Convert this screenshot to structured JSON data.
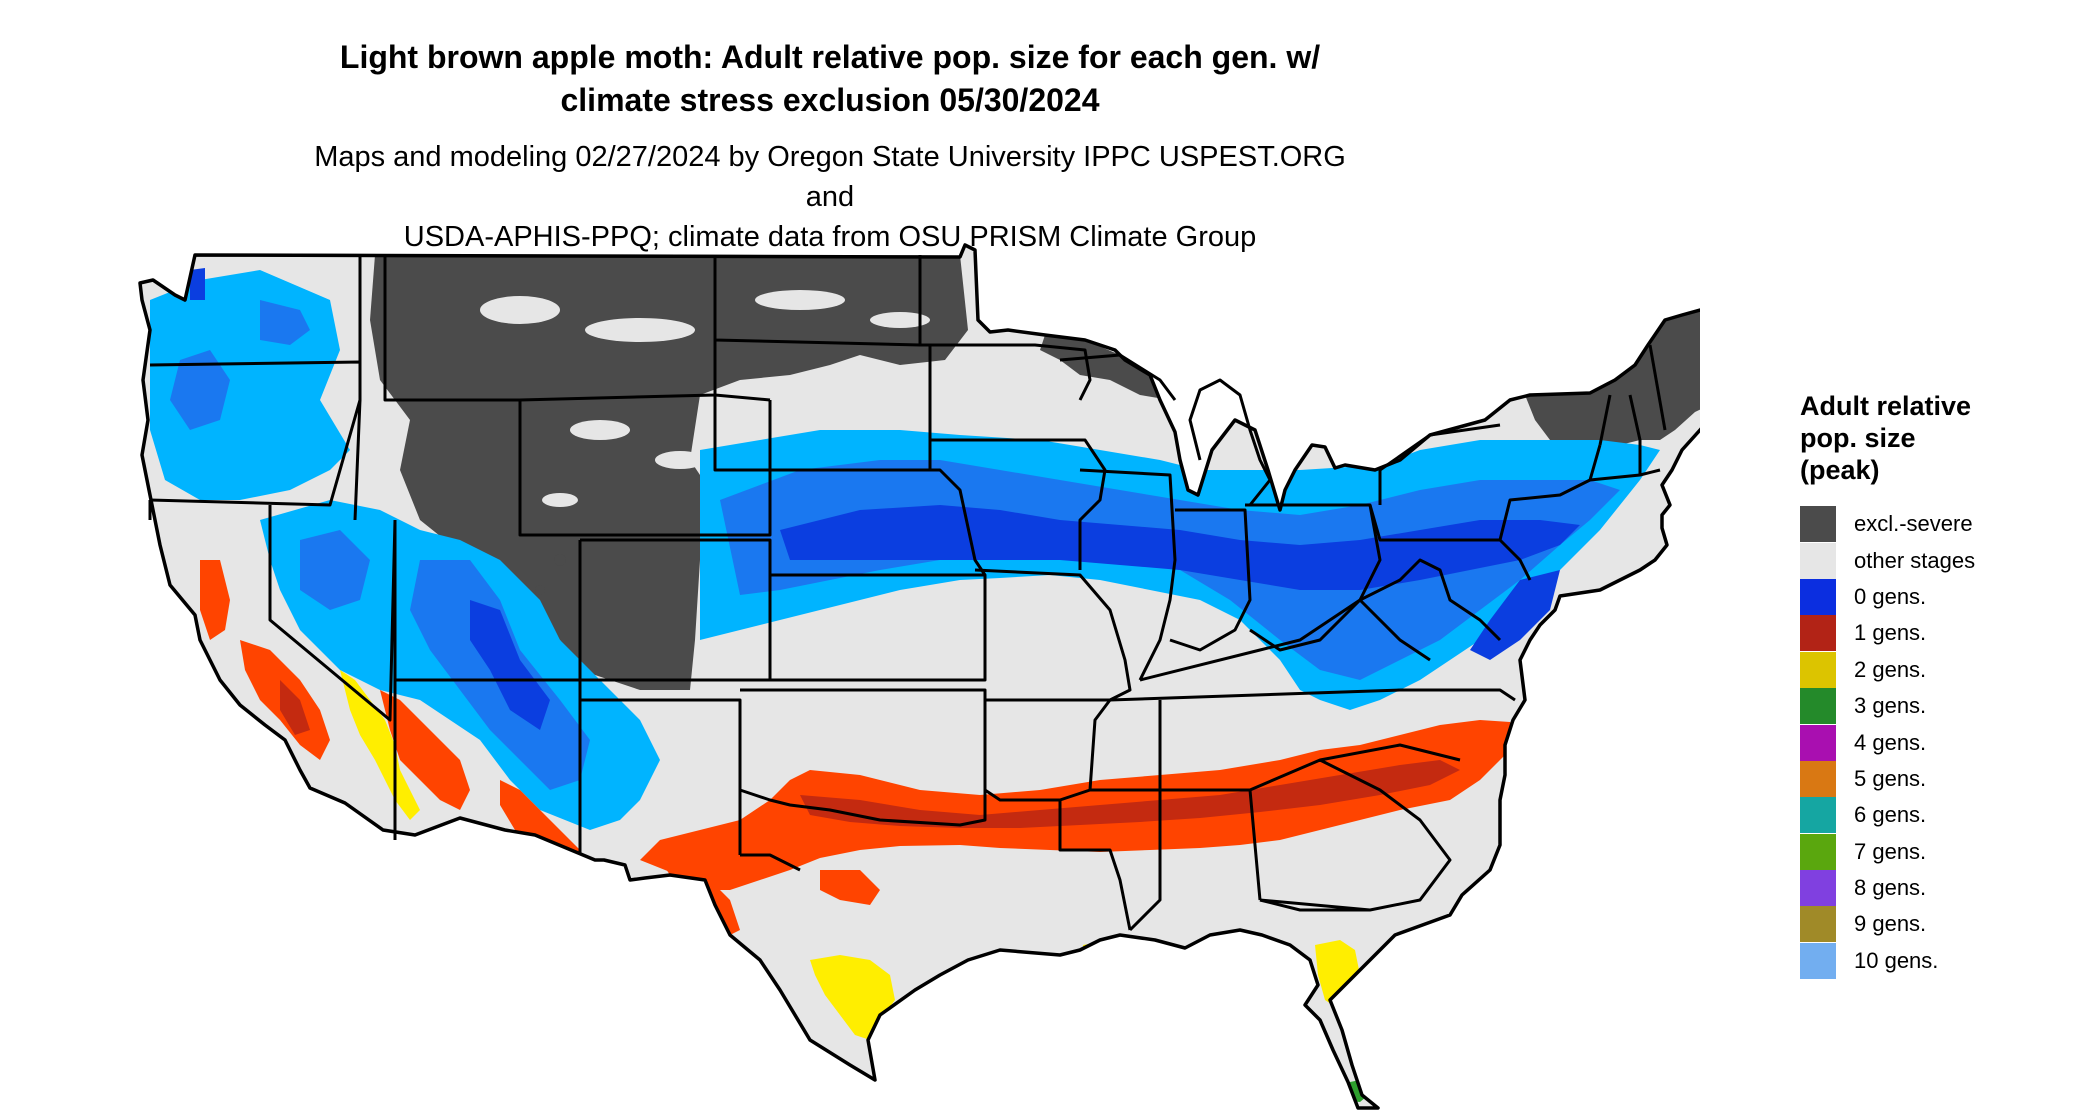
{
  "title_line1": "Light brown apple moth: Adult relative pop. size for each gen. w/",
  "title_line2": "climate stress exclusion 05/30/2024",
  "subtitle_line1": "Maps and modeling 02/27/2024 by Oregon State University IPPC USPEST.ORG and",
  "subtitle_line2": "USDA-APHIS-PPQ; climate data from OSU PRISM Climate Group",
  "legend": {
    "title_lines": [
      "Adult relative",
      "pop. size",
      "(peak)"
    ],
    "items": [
      {
        "label": "excl.-severe",
        "color": "#4b4b4b"
      },
      {
        "label": "other stages",
        "color": "#e6e6e6"
      },
      {
        "label": "0 gens.",
        "color": "#0b2ee0"
      },
      {
        "label": "1 gens.",
        "color": "#b22316"
      },
      {
        "label": "2 gens.",
        "color": "#dcc400"
      },
      {
        "label": "3 gens.",
        "color": "#248a2a"
      },
      {
        "label": "4 gens.",
        "color": "#a90fb0"
      },
      {
        "label": "5 gens.",
        "color": "#d97813"
      },
      {
        "label": "6 gens.",
        "color": "#15a6a2"
      },
      {
        "label": "7 gens.",
        "color": "#5aa70e"
      },
      {
        "label": "8 gens.",
        "color": "#8040e0"
      },
      {
        "label": "9 gens.",
        "color": "#a08a28"
      },
      {
        "label": "10 gens.",
        "color": "#72aef0"
      }
    ]
  },
  "map_colors": {
    "land": "#e6e6e6",
    "excluded": "#4b4b4b",
    "zero_gen_light": "#00b4ff",
    "zero_gen_mid": "#1a78f0",
    "zero_gen_dark": "#0b3ee0",
    "one_gen": "#ff4400",
    "one_gen_dark": "#c42a10",
    "two_gen": "#ffee00",
    "three_gen": "#2ea02e",
    "border": "#000000"
  }
}
